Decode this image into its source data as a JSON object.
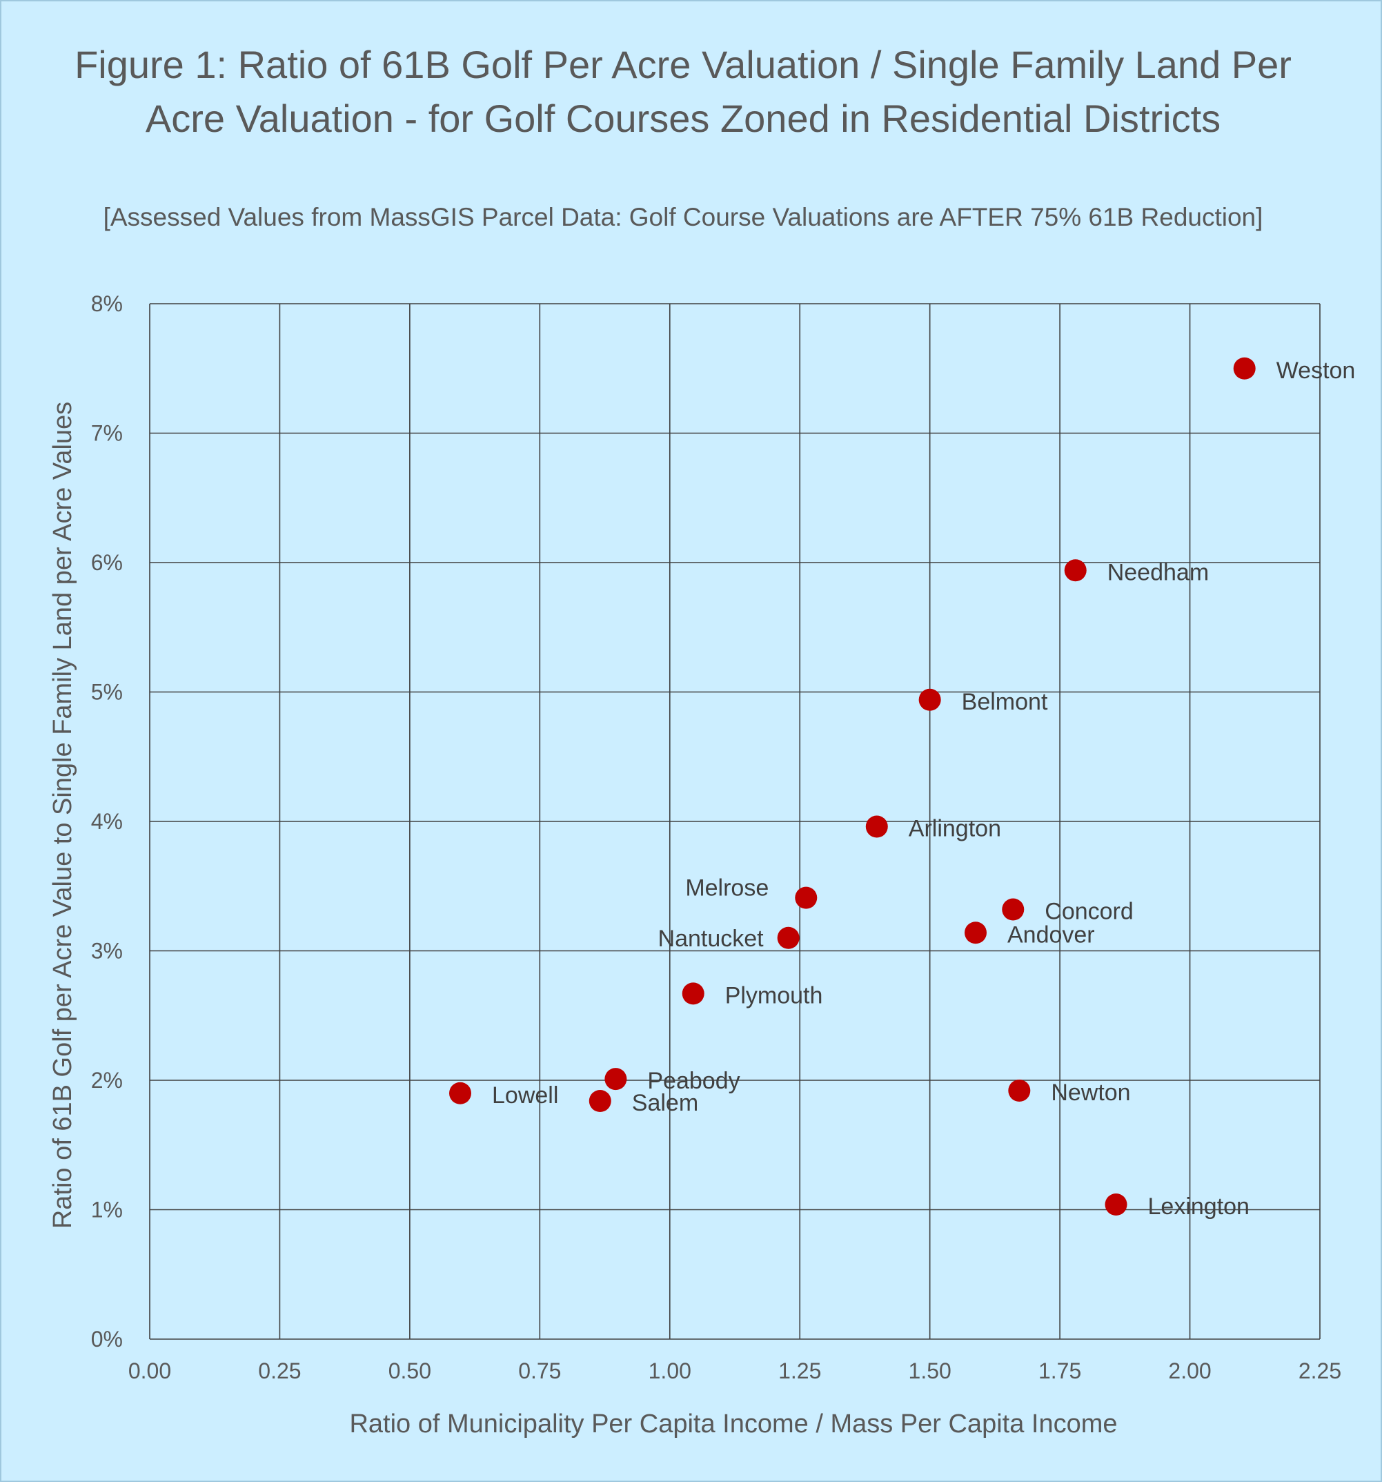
{
  "chart_data": {
    "type": "scatter",
    "title": "Figure 1: Ratio of 61B Golf Per Acre Valuation / Single Family Land Per Acre Valuation - for Golf Courses Zoned in Residential Districts",
    "subtitle": "[Assessed Values from MassGIS Parcel Data: Golf Course Valuations are AFTER 75% 61B Reduction]",
    "xlabel": "Ratio of Municipality Per Capita Income /  Mass Per Capita Income",
    "ylabel": "Ratio of  61B Golf  per Acre Value to Single Family Land  per Acre Values",
    "xlim": [
      0,
      2.25
    ],
    "ylim": [
      0,
      0.08
    ],
    "x_ticks": [
      "0.00",
      "0.25",
      "0.50",
      "0.75",
      "1.00",
      "1.25",
      "1.50",
      "1.75",
      "2.00",
      "2.25"
    ],
    "y_ticks": [
      "0%",
      "1%",
      "2%",
      "3%",
      "4%",
      "5%",
      "6%",
      "7%",
      "8%"
    ],
    "grid": true,
    "legend": "none",
    "marker_color": "#c00000",
    "points": [
      {
        "label": "Weston",
        "x": 2.105,
        "y": 0.075,
        "label_side": "right"
      },
      {
        "label": "Needham",
        "x": 1.78,
        "y": 0.0594,
        "label_side": "right"
      },
      {
        "label": "Belmont",
        "x": 1.5,
        "y": 0.0494,
        "label_side": "right"
      },
      {
        "label": "Arlington",
        "x": 1.398,
        "y": 0.0396,
        "label_side": "right"
      },
      {
        "label": "Melrose",
        "x": 1.262,
        "y": 0.0341,
        "label_side": "upper-left"
      },
      {
        "label": "Concord",
        "x": 1.66,
        "y": 0.0332,
        "label_side": "right"
      },
      {
        "label": "Andover",
        "x": 1.588,
        "y": 0.0314,
        "label_side": "right"
      },
      {
        "label": "Nantucket",
        "x": 1.228,
        "y": 0.031,
        "label_side": "left"
      },
      {
        "label": "Plymouth",
        "x": 1.045,
        "y": 0.0267,
        "label_side": "right"
      },
      {
        "label": "Peabody",
        "x": 0.896,
        "y": 0.0201,
        "label_side": "right"
      },
      {
        "label": "Lowell",
        "x": 0.597,
        "y": 0.019,
        "label_side": "right"
      },
      {
        "label": "Salem",
        "x": 0.866,
        "y": 0.0184,
        "label_side": "right"
      },
      {
        "label": "Newton",
        "x": 1.672,
        "y": 0.0192,
        "label_side": "right"
      },
      {
        "label": "Lexington",
        "x": 1.858,
        "y": 0.0104,
        "label_side": "right"
      }
    ]
  }
}
